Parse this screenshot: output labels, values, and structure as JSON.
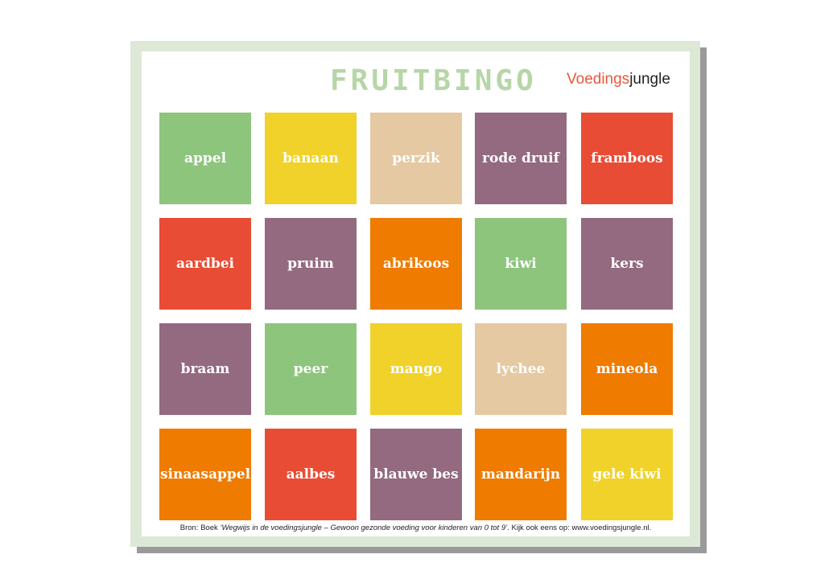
{
  "title": "FRUITBINGO",
  "logo": {
    "part1": "Voedings",
    "part2": "jungle"
  },
  "colors": {
    "green": "#8dc57d",
    "yellow": "#f0d22a",
    "tan": "#e5c9a2",
    "purple": "#936a80",
    "red": "#e94c35",
    "orange": "#ef7b00"
  },
  "tiles": [
    [
      {
        "label": "appel",
        "color": "green"
      },
      {
        "label": "banaan",
        "color": "yellow"
      },
      {
        "label": "perzik",
        "color": "tan"
      },
      {
        "label": "rode druif",
        "color": "purple"
      },
      {
        "label": "framboos",
        "color": "red"
      }
    ],
    [
      {
        "label": "aardbei",
        "color": "red"
      },
      {
        "label": "pruim",
        "color": "purple"
      },
      {
        "label": "abrikoos",
        "color": "orange"
      },
      {
        "label": "kiwi",
        "color": "green"
      },
      {
        "label": "kers",
        "color": "purple"
      }
    ],
    [
      {
        "label": "braam",
        "color": "purple"
      },
      {
        "label": "peer",
        "color": "green"
      },
      {
        "label": "mango",
        "color": "yellow"
      },
      {
        "label": "lychee",
        "color": "tan"
      },
      {
        "label": "mineola",
        "color": "orange"
      }
    ],
    [
      {
        "label": "sinaasappel",
        "color": "orange"
      },
      {
        "label": "aalbes",
        "color": "red"
      },
      {
        "label": "blauwe bes",
        "color": "purple"
      },
      {
        "label": "mandarijn",
        "color": "orange"
      },
      {
        "label": "gele kiwi",
        "color": "yellow"
      }
    ]
  ],
  "footer": {
    "prefix": "Bron:  Boek ",
    "italic": "‘Wegwijs in de voedingsjungle – Gewoon gezonde voeding voor kinderen van 0 tot 9’",
    "suffix": ". Kijk ook eens op: www.voedingsjungle.nl."
  }
}
